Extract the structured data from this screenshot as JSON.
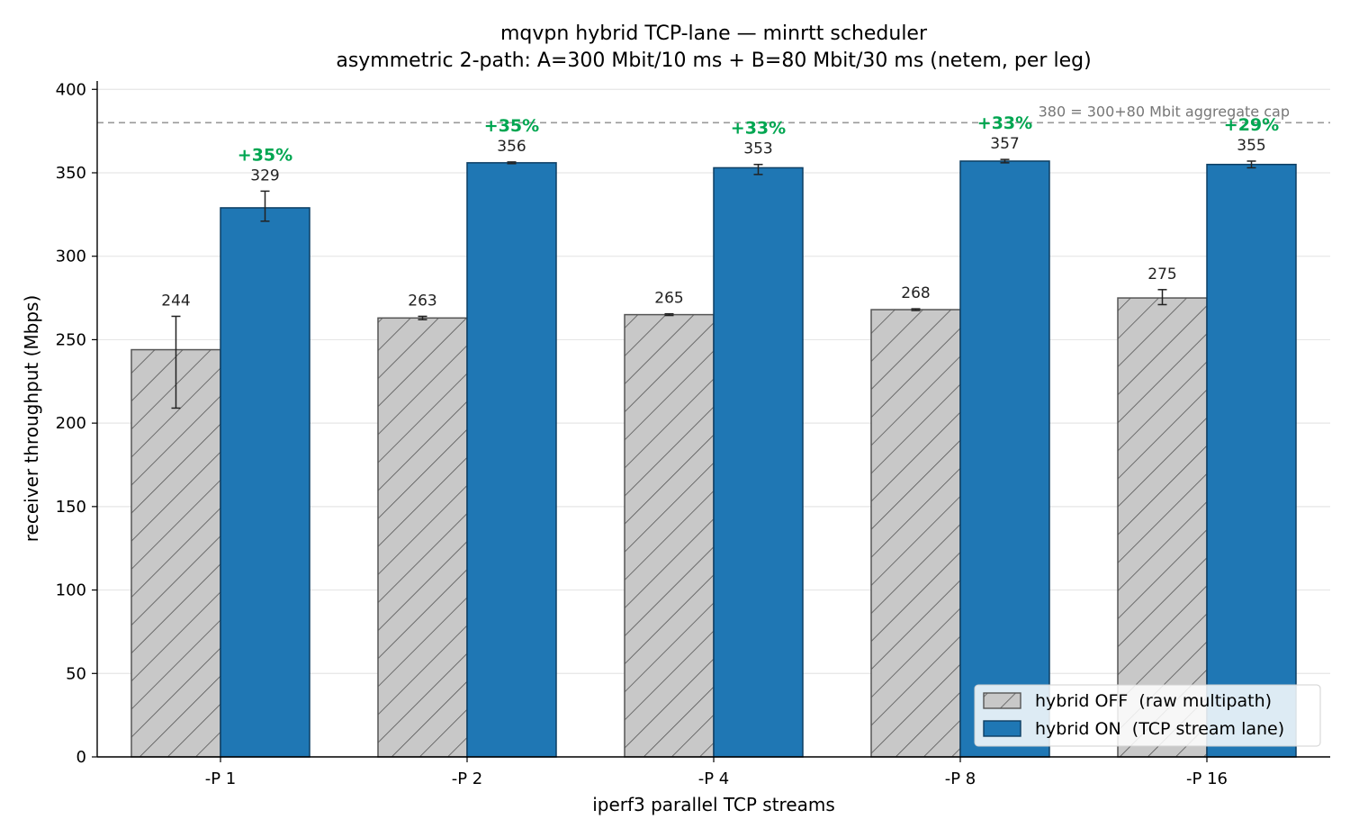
{
  "chart_data": {
    "type": "bar",
    "title": "mqvpn hybrid TCP-lane — minrtt scheduler",
    "subtitle": "asymmetric 2-path: A=300 Mbit/10 ms + B=80 Mbit/30 ms (netem, per leg)",
    "xlabel": "iperf3 parallel TCP streams",
    "ylabel": "receiver throughput (Mbps)",
    "ylim": [
      0,
      405
    ],
    "yticks": [
      0,
      50,
      100,
      150,
      200,
      250,
      300,
      350,
      400
    ],
    "categories": [
      "-P 1",
      "-P 2",
      "-P 4",
      "-P 8",
      "-P 16"
    ],
    "series": [
      {
        "name": "hybrid OFF  (raw multipath)",
        "values": [
          244,
          263,
          265,
          268,
          275
        ],
        "labels": [
          "244",
          "263",
          "265",
          "268",
          "275"
        ],
        "err_low": [
          209,
          262,
          264.5,
          267.5,
          271
        ],
        "err_high": [
          264,
          264,
          265.5,
          268.5,
          280
        ],
        "color": "#c8c8c8",
        "edge": "#555555",
        "hatch": true
      },
      {
        "name": "hybrid ON  (TCP stream lane)",
        "values": [
          329,
          356,
          353,
          357,
          355
        ],
        "labels": [
          "329",
          "356",
          "353",
          "357",
          "355"
        ],
        "err_low": [
          321,
          355.5,
          349,
          356,
          353
        ],
        "err_high": [
          339,
          356.5,
          355,
          358,
          357
        ],
        "color": "#1f77b4",
        "edge": "#0d3e63",
        "hatch": false
      }
    ],
    "improvements": [
      "+35%",
      "+35%",
      "+33%",
      "+33%",
      "+29%"
    ],
    "reference_line": {
      "value": 380,
      "label": "380 = 300+80 Mbit aggregate cap",
      "color": "#999999"
    },
    "grid": "y",
    "legend_position": "bottom-right"
  }
}
